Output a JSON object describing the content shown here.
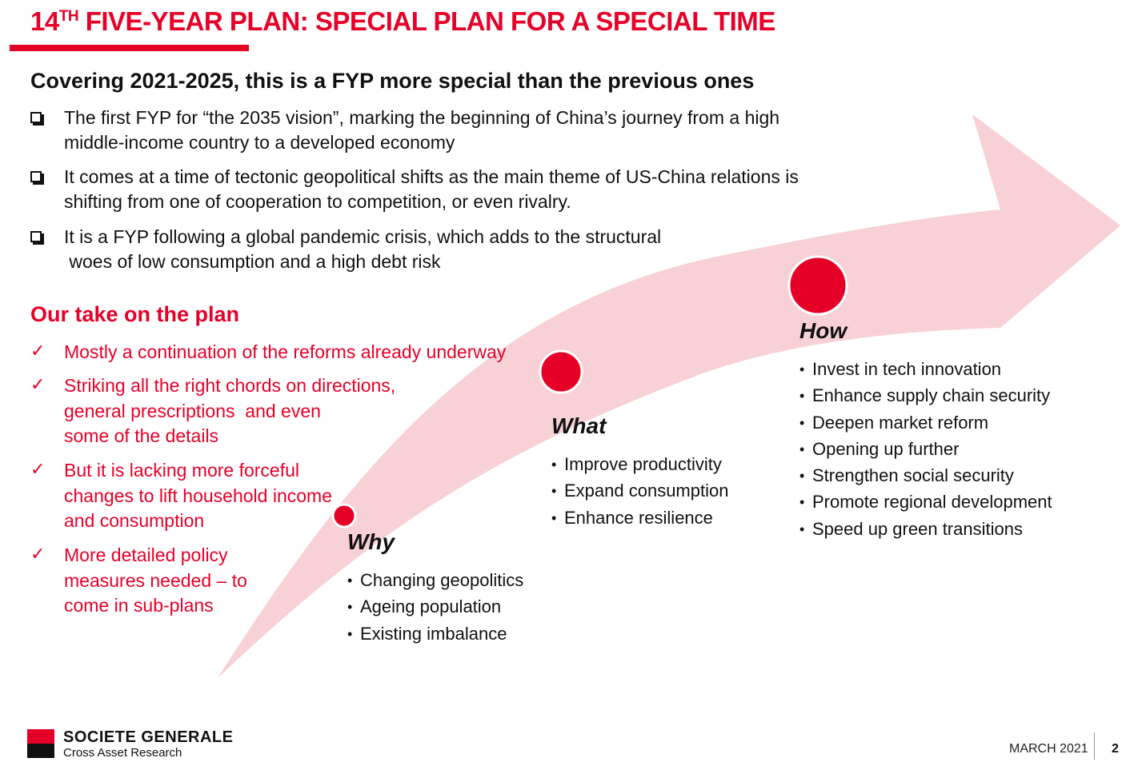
{
  "title": {
    "main": "14",
    "sup": "TH",
    "rest": " FIVE-YEAR PLAN: SPECIAL PLAN FOR A SPECIAL TIME"
  },
  "subtitle": "Covering 2021-2025, this is a FYP more special than the previous ones",
  "bullets": [
    {
      "line1": "The first FYP for “the 2035 vision”, marking the beginning of China’s journey from a high",
      "line2": "middle-income country to a developed economy"
    },
    {
      "line1": "It comes at a time of tectonic geopolitical shifts as the main theme of US-China relations is",
      "line2": "shifting from one of cooperation to competition, or even rivalry."
    },
    {
      "line1": "It is a FYP following a global pandemic crisis, which adds to the structural",
      "line2": " woes of low consumption and a high debt risk"
    }
  ],
  "take": {
    "heading": "Our take on the plan",
    "items": [
      {
        "lines": [
          "Mostly a continuation of the reforms already underway"
        ]
      },
      {
        "lines": [
          "Striking all the right chords on directions,",
          "general prescriptions  and even",
          "some of the details"
        ]
      },
      {
        "lines": [
          "But it is lacking more forceful",
          "changes to lift household income",
          "and consumption"
        ]
      },
      {
        "lines": [
          "More detailed policy",
          "measures needed – to",
          "come in sub-plans"
        ]
      }
    ]
  },
  "stages": {
    "why": {
      "title": "Why",
      "items": [
        "Changing geopolitics",
        "Ageing population",
        "Existing imbalance"
      ]
    },
    "what": {
      "title": "What",
      "items": [
        "Improve productivity",
        "Expand consumption",
        "Enhance resilience"
      ]
    },
    "how": {
      "title": "How",
      "items": [
        "Invest in tech innovation",
        "Enhance supply chain security",
        "Deepen market reform",
        "Opening up further",
        "Strengthen social security",
        "Promote regional development",
        "Speed up green transitions"
      ]
    }
  },
  "colors": {
    "accent": "#e60028",
    "arrow": "#f7c9cf",
    "text": "#111111"
  },
  "footer": {
    "brand": "SOCIETE GENERALE",
    "brand_sub": "Cross Asset Research",
    "date": "MARCH 2021",
    "page": "2"
  }
}
